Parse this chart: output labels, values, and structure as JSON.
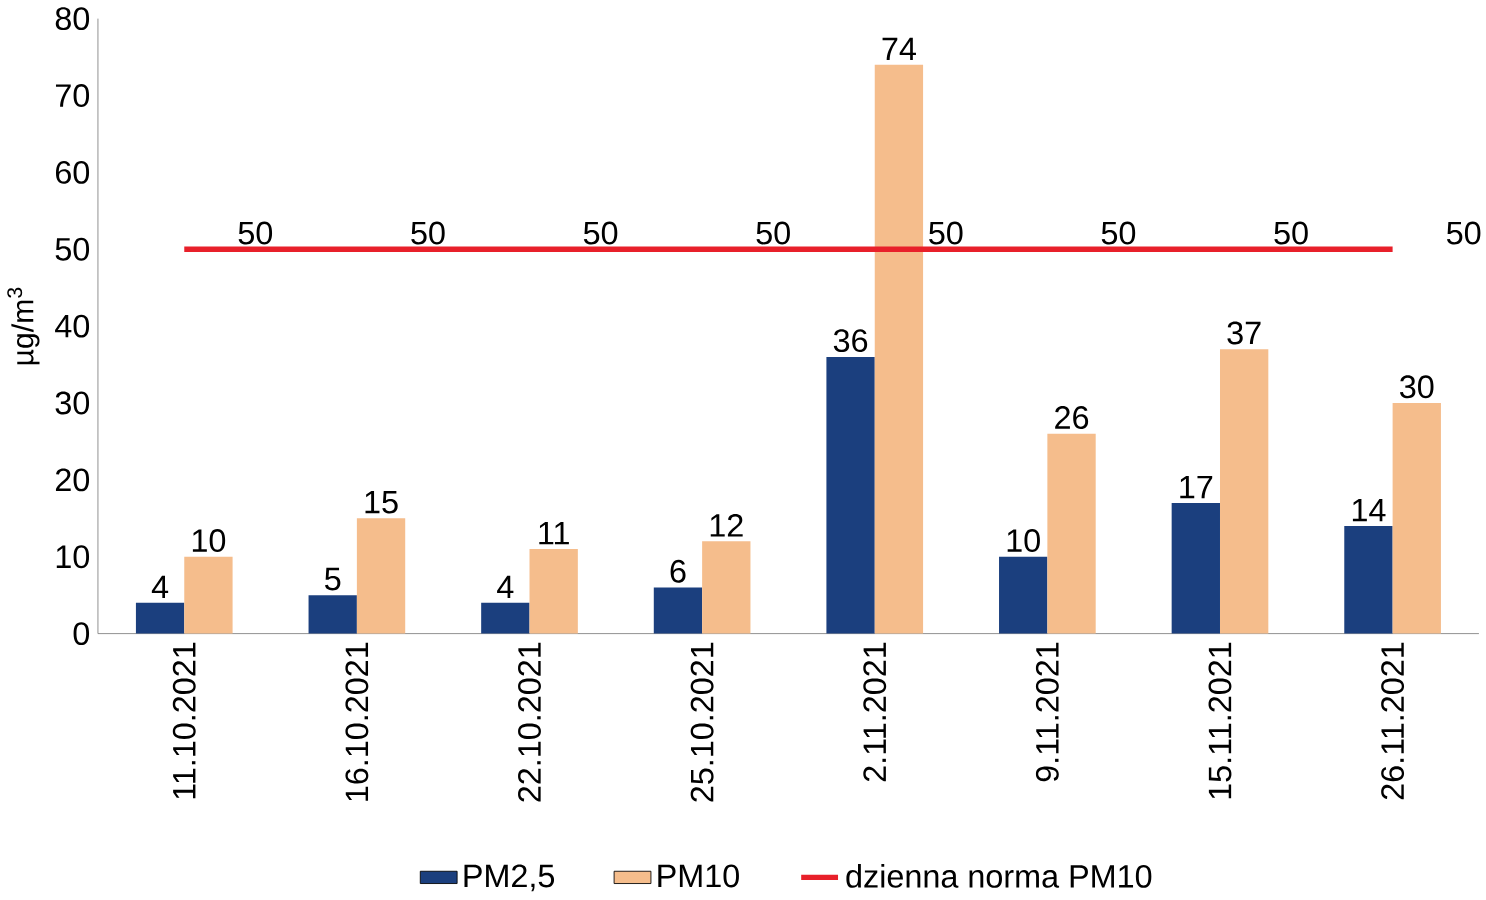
{
  "chart_data": {
    "type": "bar",
    "ylabel": "µg/m$^{3}$",
    "categories": [
      "11.10.2021",
      "16.10.2021",
      "22.10.2021",
      "25.10.2021",
      "2.11.2021",
      "9.11.2021",
      "15.11.2021",
      "26.11.2021"
    ],
    "series": [
      {
        "name": "PM2,5",
        "color": "#1b3f7e",
        "values": [
          4,
          5,
          4,
          6,
          36,
          10,
          17,
          14
        ]
      },
      {
        "name": "PM10",
        "color": "#f5bd8c",
        "values": [
          10,
          15,
          11,
          12,
          74,
          26,
          37,
          30
        ]
      },
      {
        "name": "dzienna norma PM10",
        "type": "line",
        "color": "#e8202a",
        "values": [
          50,
          50,
          50,
          50,
          50,
          50,
          50,
          50
        ],
        "marker": "none",
        "line_style": "solid"
      }
    ],
    "ylim": [
      0,
      80
    ],
    "yticks": [
      0,
      10,
      20,
      30,
      40,
      50,
      60,
      70,
      80
    ],
    "data_labels": true,
    "legend": "bottom"
  }
}
